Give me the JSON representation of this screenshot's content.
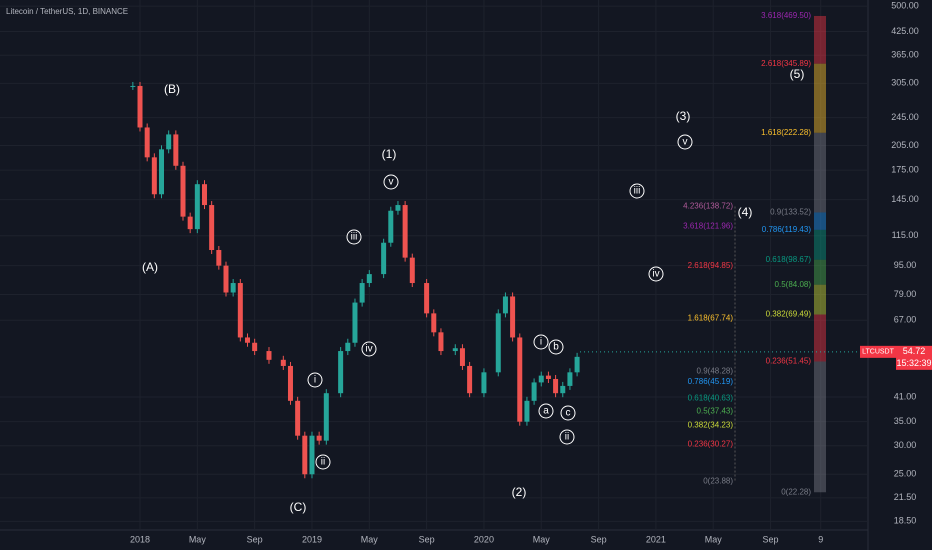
{
  "header": {
    "title": "Litecoin / TetherUS, 1D, BINANCE"
  },
  "chart_data": {
    "type": "candlestick",
    "log_scale": true,
    "grid": true,
    "up_color": "#26a69a",
    "down_color": "#ef5350",
    "xlim": [
      -9.77,
      50.8
    ],
    "ylim": [
      17.5,
      520
    ],
    "xticks": [
      {
        "value": 0,
        "label": "2018"
      },
      {
        "value": 4,
        "label": "May"
      },
      {
        "value": 8,
        "label": "Sep"
      },
      {
        "value": 12,
        "label": "2019"
      },
      {
        "value": 16,
        "label": "May"
      },
      {
        "value": 20,
        "label": "Sep"
      },
      {
        "value": 24,
        "label": "2020"
      },
      {
        "value": 28,
        "label": "May"
      },
      {
        "value": 32,
        "label": "Sep"
      },
      {
        "value": 36,
        "label": "2021"
      },
      {
        "value": 40,
        "label": "May"
      },
      {
        "value": 44,
        "label": "Sep"
      },
      {
        "value": 47.5,
        "label": "9"
      }
    ],
    "yticks": [
      {
        "value": 500,
        "label": "500.00"
      },
      {
        "value": 425,
        "label": "425.00"
      },
      {
        "value": 365,
        "label": "365.00"
      },
      {
        "value": 305,
        "label": "305.00"
      },
      {
        "value": 245,
        "label": "245.00"
      },
      {
        "value": 205,
        "label": "205.00"
      },
      {
        "value": 175,
        "label": "175.00"
      },
      {
        "value": 145,
        "label": "145.00"
      },
      {
        "value": 115,
        "label": "115.00"
      },
      {
        "value": 95,
        "label": "95.00"
      },
      {
        "value": 79,
        "label": "79.00"
      },
      {
        "value": 67,
        "label": "67.00"
      },
      {
        "value": 41,
        "label": "41.00"
      },
      {
        "value": 35,
        "label": "35.00"
      },
      {
        "value": 30,
        "label": "30.00"
      },
      {
        "value": 25,
        "label": "25.00"
      },
      {
        "value": 21.5,
        "label": "21.50"
      },
      {
        "value": 18.5,
        "label": "18.50"
      }
    ],
    "x": [
      -0.5,
      0,
      0.5,
      1,
      1.5,
      2,
      2.5,
      3,
      3.5,
      4,
      4.5,
      5,
      5.5,
      6,
      6.5,
      7,
      7.5,
      8,
      9,
      10,
      10.5,
      11,
      11.5,
      12,
      12.5,
      13,
      14,
      14.5,
      15,
      15.5,
      16,
      17,
      17.5,
      18,
      18.5,
      19,
      20,
      20.5,
      21,
      22,
      22.5,
      23,
      24,
      25,
      25.5,
      26,
      26.5,
      27,
      27.5,
      28,
      28.5,
      29,
      29.5,
      30,
      30.5
    ],
    "values": [
      300,
      230,
      190,
      150,
      200,
      220,
      180,
      130,
      120,
      160,
      140,
      105,
      95,
      80,
      85,
      60,
      58,
      55,
      52,
      50,
      40,
      32,
      25,
      32,
      31,
      42,
      55,
      58,
      75,
      85,
      90,
      110,
      135,
      140,
      100,
      85,
      70,
      62,
      55,
      56,
      50,
      42,
      48,
      70,
      78,
      60,
      35,
      40,
      45,
      47,
      46,
      42,
      44,
      48,
      53
    ],
    "annotations": [
      {
        "text": "(B)"
      },
      {
        "text": "(A)"
      },
      {
        "text": "(C)"
      },
      {
        "text": "(1)"
      },
      {
        "text": "(2)"
      },
      {
        "text": "(3)"
      },
      {
        "text": "(4)"
      },
      {
        "text": "(5)"
      },
      {
        "text": "v",
        "circled": true
      },
      {
        "text": "iii",
        "circled": true
      },
      {
        "text": "iv",
        "circled": true
      },
      {
        "text": "i",
        "circled": true
      },
      {
        "text": "ii",
        "circled": true
      },
      {
        "text": "i",
        "circled": true
      },
      {
        "text": "b",
        "circled": true
      },
      {
        "text": "a",
        "circled": true
      },
      {
        "text": "c",
        "circled": true
      },
      {
        "text": "ii",
        "circled": true
      },
      {
        "text": "v",
        "circled": true
      },
      {
        "text": "iii",
        "circled": true
      },
      {
        "text": "iv",
        "circled": true
      }
    ],
    "fib_groups": [
      [
        {
          "label": "4.236(138.72)",
          "price": 138.72,
          "color": "#b05a9a"
        },
        {
          "label": "3.618(121.96)",
          "price": 121.96,
          "color": "#9c27b0"
        },
        {
          "label": "2.618(94.85)",
          "price": 94.85,
          "color": "#f23645"
        },
        {
          "label": "1.618(67.74)",
          "price": 67.74,
          "color": "#fbc02d"
        },
        {
          "label": "0.9(48.28)",
          "price": 48.28,
          "color": "#787b86"
        },
        {
          "label": "0.786(45.19)",
          "price": 45.19,
          "color": "#2196f3"
        },
        {
          "label": "0.618(40.63)",
          "price": 40.63,
          "color": "#089981"
        },
        {
          "label": "0.5(37.43)",
          "price": 37.43,
          "color": "#4caf50"
        },
        {
          "label": "0.382(34.23)",
          "price": 34.23,
          "color": "#cddc39"
        },
        {
          "label": "0.236(30.27)",
          "price": 30.27,
          "color": "#f23645"
        },
        {
          "label": "0(23.88)",
          "price": 23.88,
          "color": "#787b86"
        }
      ],
      [
        {
          "label": "3.618(469.50)",
          "price": 469.5,
          "color": "#9c27b0"
        },
        {
          "label": "2.618(345.89)",
          "price": 345.89,
          "color": "#f23645"
        },
        {
          "label": "1.618(222.28)",
          "price": 222.28,
          "color": "#fbc02d"
        },
        {
          "label": "0.9(133.52)",
          "price": 133.52,
          "color": "#787b86"
        },
        {
          "label": "0.786(119.43)",
          "price": 119.43,
          "color": "#2196f3"
        },
        {
          "label": "0.618(98.67)",
          "price": 98.67,
          "color": "#089981"
        },
        {
          "label": "0.5(84.08)",
          "price": 84.08,
          "color": "#4caf50"
        },
        {
          "label": "0.382(69.49)",
          "price": 69.49,
          "color": "#cddc39"
        },
        {
          "label": "0.236(51.45)",
          "price": 51.45,
          "color": "#f23645"
        },
        {
          "label": "0(22.28)",
          "price": 22.28,
          "color": "#787b86"
        }
      ]
    ],
    "last_price": {
      "symbol": "LTCUSDT",
      "value": 54.72,
      "label": "54.72",
      "countdown": "15:32:39"
    }
  }
}
